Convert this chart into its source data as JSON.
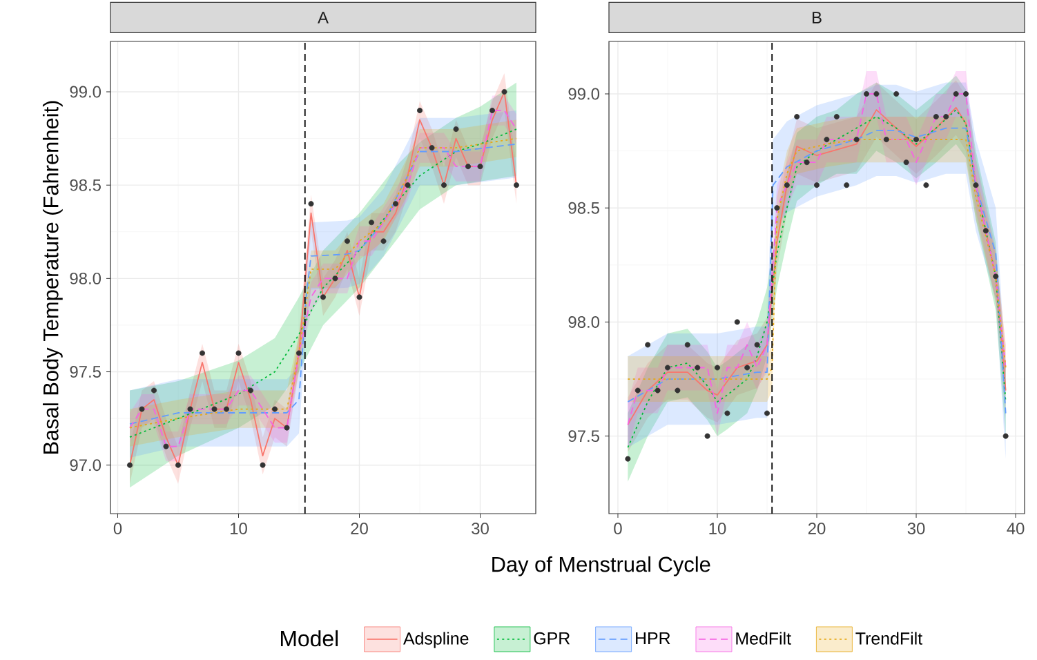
{
  "chart_data": [
    {
      "type": "line",
      "title": "A",
      "xlabel": "Day of Menstrual Cycle",
      "ylabel": "Basal Body Temperature (Fahrenheit)",
      "legend": "bottom",
      "legend_title": "Model",
      "grid": true,
      "xlim": [
        -0.6,
        34.6
      ],
      "ylim": [
        96.74,
        99.27
      ],
      "xticks": [
        0,
        10,
        20,
        30
      ],
      "yticks": [
        {
          "value": 97,
          "label": "97.0"
        },
        {
          "value": 97.5,
          "label": "97.5"
        },
        {
          "value": 98,
          "label": "98.0"
        },
        {
          "value": 98.5,
          "label": "98.5"
        },
        {
          "value": 99,
          "label": "99.0"
        }
      ],
      "ref_lines": [
        {
          "axis": "x",
          "value": 15.5,
          "line_style": "dashed",
          "color": "#000000"
        }
      ],
      "series": [
        {
          "name": "Adspline",
          "line_style": "solid",
          "color": "#F8766D",
          "x": [
            1,
            2,
            3,
            4,
            5,
            6,
            7,
            8,
            9,
            10,
            11,
            12,
            13,
            14,
            15,
            16,
            17,
            18,
            19,
            20,
            21,
            22,
            23,
            24,
            25,
            26,
            27,
            28,
            29,
            30,
            31,
            32,
            33
          ],
          "values": [
            97.0,
            97.3,
            97.35,
            97.15,
            97.0,
            97.3,
            97.55,
            97.3,
            97.3,
            97.55,
            97.35,
            97.05,
            97.25,
            97.2,
            97.6,
            98.35,
            97.9,
            98.0,
            98.15,
            97.9,
            98.25,
            98.25,
            98.35,
            98.55,
            98.85,
            98.7,
            98.5,
            98.75,
            98.6,
            98.6,
            98.85,
            99.0,
            98.5
          ],
          "lower": [
            96.9,
            97.2,
            97.25,
            97.05,
            96.9,
            97.2,
            97.45,
            97.2,
            97.2,
            97.45,
            97.25,
            96.95,
            97.15,
            97.1,
            97.5,
            98.25,
            97.8,
            97.9,
            98.05,
            97.8,
            98.15,
            98.15,
            98.25,
            98.45,
            98.75,
            98.6,
            98.4,
            98.65,
            98.5,
            98.5,
            98.75,
            98.9,
            98.4
          ],
          "upper": [
            97.1,
            97.4,
            97.45,
            97.25,
            97.1,
            97.4,
            97.65,
            97.4,
            97.4,
            97.65,
            97.45,
            97.15,
            97.35,
            97.3,
            97.7,
            98.45,
            98.0,
            98.1,
            98.25,
            98.0,
            98.35,
            98.35,
            98.45,
            98.65,
            98.95,
            98.8,
            98.6,
            98.85,
            98.7,
            98.7,
            98.95,
            99.1,
            98.6
          ]
        },
        {
          "name": "GPR",
          "line_style": "dotted",
          "color": "#00BA38",
          "x": [
            1,
            5,
            10,
            13,
            15,
            17,
            20,
            23,
            25,
            28,
            30,
            33
          ],
          "values": [
            97.15,
            97.25,
            97.38,
            97.5,
            97.7,
            97.95,
            98.15,
            98.4,
            98.55,
            98.68,
            98.72,
            98.8
          ],
          "lower": [
            96.88,
            97.05,
            97.2,
            97.32,
            97.5,
            97.75,
            97.95,
            98.2,
            98.37,
            98.5,
            98.52,
            98.55
          ],
          "upper": [
            97.4,
            97.45,
            97.56,
            97.68,
            97.9,
            98.15,
            98.35,
            98.6,
            98.73,
            98.86,
            98.92,
            99.05
          ]
        },
        {
          "name": "HPR",
          "line_style": "dashed",
          "color": "#619CFF",
          "x": [
            1,
            5,
            10,
            14,
            15,
            15.6,
            16,
            19,
            20,
            22,
            24,
            25,
            28,
            33
          ],
          "values": [
            97.22,
            97.28,
            97.28,
            97.28,
            97.35,
            97.9,
            98.12,
            98.13,
            98.15,
            98.3,
            98.55,
            98.68,
            98.68,
            98.72
          ],
          "lower": [
            97.04,
            97.1,
            97.1,
            97.1,
            97.17,
            97.72,
            97.94,
            97.95,
            97.97,
            98.12,
            98.37,
            98.5,
            98.5,
            98.54
          ],
          "upper": [
            97.4,
            97.46,
            97.46,
            97.46,
            97.53,
            98.08,
            98.3,
            98.31,
            98.33,
            98.48,
            98.73,
            98.86,
            98.86,
            98.9
          ]
        },
        {
          "name": "MedFilt",
          "line_style": "dashed",
          "color": "#F564E3",
          "x": [
            1,
            2,
            3,
            4,
            5,
            6,
            7,
            8,
            9,
            10,
            11,
            12,
            13,
            14,
            15,
            16,
            17,
            18,
            19,
            20,
            21,
            22,
            23,
            24,
            25,
            26,
            27,
            28,
            29,
            30,
            31,
            32,
            33
          ],
          "values": [
            97.2,
            97.3,
            97.3,
            97.1,
            97.1,
            97.3,
            97.3,
            97.3,
            97.3,
            97.4,
            97.4,
            97.3,
            97.2,
            97.2,
            97.6,
            97.9,
            98.0,
            98.0,
            98.0,
            98.2,
            98.2,
            98.3,
            98.4,
            98.5,
            98.7,
            98.7,
            98.7,
            98.6,
            98.6,
            98.6,
            98.9,
            98.9,
            98.8
          ],
          "lower": [
            97.12,
            97.22,
            97.22,
            97.02,
            97.02,
            97.22,
            97.22,
            97.22,
            97.22,
            97.32,
            97.32,
            97.22,
            97.12,
            97.12,
            97.52,
            97.82,
            97.92,
            97.92,
            97.92,
            98.12,
            98.12,
            98.22,
            98.32,
            98.42,
            98.62,
            98.62,
            98.62,
            98.52,
            98.52,
            98.52,
            98.82,
            98.82,
            98.72
          ],
          "upper": [
            97.28,
            97.38,
            97.38,
            97.18,
            97.18,
            97.38,
            97.38,
            97.38,
            97.38,
            97.48,
            97.48,
            97.38,
            97.28,
            97.28,
            97.68,
            97.98,
            98.08,
            98.08,
            98.08,
            98.28,
            98.28,
            98.38,
            98.48,
            98.58,
            98.78,
            98.78,
            98.78,
            98.68,
            98.68,
            98.68,
            98.98,
            98.98,
            98.88
          ]
        },
        {
          "name": "TrendFilt",
          "line_style": "dotted",
          "color": "#E6A817",
          "x": [
            1,
            5,
            10,
            14,
            15,
            16,
            18,
            20,
            22,
            24,
            25,
            28,
            33
          ],
          "values": [
            97.2,
            97.25,
            97.3,
            97.3,
            97.6,
            98.05,
            98.05,
            98.2,
            98.3,
            98.55,
            98.7,
            98.7,
            98.75
          ],
          "lower": [
            97.1,
            97.15,
            97.2,
            97.2,
            97.5,
            97.95,
            97.95,
            98.1,
            98.2,
            98.45,
            98.6,
            98.6,
            98.65
          ],
          "upper": [
            97.3,
            97.35,
            97.4,
            97.4,
            97.7,
            98.15,
            98.15,
            98.3,
            98.4,
            98.65,
            98.8,
            98.8,
            98.85
          ]
        },
        {
          "type": "scatter",
          "color": "#333333",
          "x": [
            1,
            2,
            3,
            4,
            5,
            6,
            7,
            8,
            9,
            10,
            11,
            12,
            13,
            14,
            15,
            16,
            17,
            18,
            19,
            20,
            21,
            22,
            23,
            24,
            25,
            26,
            27,
            28,
            29,
            30,
            31,
            32,
            33
          ],
          "values": [
            97.0,
            97.3,
            97.4,
            97.1,
            97.0,
            97.3,
            97.6,
            97.3,
            97.3,
            97.6,
            97.4,
            97.0,
            97.3,
            97.2,
            97.6,
            98.4,
            97.9,
            98.0,
            98.2,
            97.9,
            98.3,
            98.2,
            98.4,
            98.5,
            98.9,
            98.7,
            98.5,
            98.8,
            98.6,
            98.6,
            98.9,
            99.0,
            98.5
          ]
        }
      ]
    },
    {
      "type": "line",
      "title": "B",
      "grid": true,
      "xlim": [
        -0.9,
        40.9
      ],
      "ylim": [
        97.16,
        99.23
      ],
      "xticks": [
        0,
        10,
        20,
        30,
        40
      ],
      "yticks": [
        {
          "value": 97.5,
          "label": "97.5"
        },
        {
          "value": 98,
          "label": "98.0"
        },
        {
          "value": 98.5,
          "label": "98.5"
        },
        {
          "value": 99,
          "label": "99.0"
        }
      ],
      "ref_lines": [
        {
          "axis": "x",
          "value": 15.5,
          "line_style": "dashed",
          "color": "#000000"
        }
      ],
      "series": [
        {
          "line_style": "solid",
          "color": "#F8766D",
          "x": [
            1,
            3,
            5,
            7,
            9,
            10,
            12,
            14,
            15,
            16,
            17,
            18,
            20,
            24,
            26,
            28,
            30,
            32,
            34,
            35,
            36,
            38,
            39
          ],
          "values": [
            97.55,
            97.7,
            97.78,
            97.78,
            97.7,
            97.68,
            97.8,
            97.83,
            97.9,
            98.35,
            98.6,
            98.77,
            98.73,
            98.78,
            98.93,
            98.85,
            98.77,
            98.85,
            98.94,
            98.87,
            98.6,
            98.2,
            97.7
          ],
          "lower": [
            97.43,
            97.58,
            97.66,
            97.66,
            97.58,
            97.56,
            97.68,
            97.71,
            97.78,
            98.23,
            98.48,
            98.65,
            98.61,
            98.66,
            98.81,
            98.73,
            98.65,
            98.73,
            98.82,
            98.75,
            98.48,
            98.08,
            97.58
          ],
          "upper": [
            97.67,
            97.82,
            97.9,
            97.9,
            97.82,
            97.8,
            97.92,
            97.95,
            98.02,
            98.47,
            98.72,
            98.89,
            98.85,
            98.9,
            99.05,
            98.97,
            98.89,
            98.97,
            99.06,
            98.99,
            98.72,
            98.32,
            97.82
          ]
        },
        {
          "line_style": "dotted",
          "color": "#00BA38",
          "x": [
            1,
            3,
            5,
            7,
            9,
            10,
            11,
            13,
            14,
            15,
            16,
            17,
            18,
            20,
            22,
            24,
            26,
            28,
            30,
            32,
            34,
            35,
            36,
            38,
            39
          ],
          "values": [
            97.45,
            97.65,
            97.8,
            97.82,
            97.72,
            97.65,
            97.68,
            97.75,
            97.85,
            98.0,
            98.3,
            98.5,
            98.68,
            98.75,
            98.8,
            98.85,
            98.9,
            98.85,
            98.78,
            98.85,
            98.93,
            98.87,
            98.6,
            98.2,
            97.65
          ],
          "lower": [
            97.3,
            97.5,
            97.65,
            97.67,
            97.57,
            97.5,
            97.53,
            97.6,
            97.7,
            97.85,
            98.15,
            98.35,
            98.53,
            98.6,
            98.65,
            98.65,
            98.75,
            98.7,
            98.63,
            98.7,
            98.78,
            98.72,
            98.45,
            98.05,
            97.5
          ],
          "upper": [
            97.6,
            97.8,
            97.95,
            97.97,
            97.87,
            97.8,
            97.83,
            97.9,
            98.0,
            98.15,
            98.45,
            98.65,
            98.83,
            98.9,
            98.93,
            99.0,
            99.05,
            99.0,
            98.93,
            99.0,
            99.08,
            99.02,
            98.75,
            98.35,
            97.8
          ]
        },
        {
          "line_style": "dashed",
          "color": "#619CFF",
          "x": [
            1,
            5,
            10,
            14,
            15,
            15.6,
            17,
            20,
            24,
            26,
            28,
            30,
            33,
            35,
            36,
            38,
            39
          ],
          "values": [
            97.65,
            97.75,
            97.75,
            97.78,
            97.78,
            98.6,
            98.68,
            98.75,
            98.8,
            98.84,
            98.84,
            98.81,
            98.85,
            98.85,
            98.6,
            98.3,
            97.6
          ],
          "lower": [
            97.45,
            97.55,
            97.55,
            97.58,
            97.58,
            98.4,
            98.48,
            98.55,
            98.6,
            98.64,
            98.64,
            98.61,
            98.65,
            98.65,
            98.4,
            98.1,
            97.4
          ],
          "upper": [
            97.85,
            97.95,
            97.95,
            97.98,
            97.98,
            98.8,
            98.88,
            98.95,
            99.0,
            99.04,
            99.04,
            99.01,
            99.05,
            99.05,
            98.8,
            98.5,
            97.8
          ]
        },
        {
          "line_style": "dashed",
          "color": "#F564E3",
          "x": [
            1,
            2,
            3,
            4,
            5,
            6,
            7,
            8,
            9,
            10,
            11,
            12,
            13,
            14,
            15,
            16,
            17,
            18,
            19,
            20,
            21,
            22,
            23,
            24,
            25,
            26,
            27,
            28,
            29,
            30,
            31,
            32,
            33,
            34,
            35,
            36,
            37,
            38,
            39
          ],
          "values": [
            97.55,
            97.7,
            97.7,
            97.7,
            97.8,
            97.8,
            97.8,
            97.8,
            97.8,
            97.6,
            97.8,
            97.8,
            97.9,
            97.8,
            97.9,
            98.5,
            98.6,
            98.7,
            98.7,
            98.7,
            98.8,
            98.8,
            98.8,
            98.8,
            99.0,
            99.0,
            98.8,
            98.8,
            98.8,
            98.7,
            98.8,
            98.9,
            98.9,
            99.0,
            99.0,
            98.6,
            98.4,
            98.2,
            97.8
          ],
          "lower": [
            97.45,
            97.6,
            97.6,
            97.6,
            97.7,
            97.7,
            97.7,
            97.7,
            97.7,
            97.5,
            97.7,
            97.7,
            97.8,
            97.7,
            97.8,
            98.4,
            98.5,
            98.6,
            98.6,
            98.6,
            98.7,
            98.7,
            98.7,
            98.7,
            98.9,
            98.9,
            98.7,
            98.7,
            98.7,
            98.6,
            98.7,
            98.8,
            98.8,
            98.9,
            98.9,
            98.5,
            98.3,
            98.1,
            97.7
          ],
          "upper": [
            97.65,
            97.8,
            97.8,
            97.8,
            97.9,
            97.9,
            97.9,
            97.9,
            97.9,
            97.7,
            97.9,
            97.9,
            98.0,
            97.9,
            98.0,
            98.6,
            98.7,
            98.8,
            98.8,
            98.8,
            98.9,
            98.9,
            98.9,
            98.9,
            99.1,
            99.1,
            98.9,
            98.9,
            98.9,
            98.8,
            98.9,
            99.0,
            99.0,
            99.1,
            99.1,
            98.7,
            98.5,
            98.3,
            97.9
          ]
        },
        {
          "line_style": "dotted",
          "color": "#E6A817",
          "x": [
            1,
            15,
            15.5,
            16,
            17,
            18,
            21,
            24,
            35,
            36,
            38,
            39
          ],
          "values": [
            97.75,
            97.75,
            97.8,
            98.45,
            98.65,
            98.75,
            98.78,
            98.8,
            98.8,
            98.55,
            98.2,
            97.8
          ],
          "lower": [
            97.65,
            97.65,
            97.7,
            98.35,
            98.55,
            98.65,
            98.68,
            98.7,
            98.7,
            98.45,
            98.1,
            97.7
          ],
          "upper": [
            97.85,
            97.85,
            97.9,
            98.55,
            98.75,
            98.85,
            98.88,
            98.9,
            98.9,
            98.65,
            98.3,
            97.9
          ]
        },
        {
          "type": "scatter",
          "color": "#333333",
          "x": [
            1,
            2,
            3,
            4,
            5,
            6,
            7,
            8,
            9,
            10,
            11,
            12,
            13,
            14,
            15,
            16,
            17,
            18,
            19,
            20,
            21,
            22,
            23,
            24,
            25,
            26,
            27,
            28,
            29,
            30,
            31,
            32,
            33,
            34,
            35,
            36,
            37,
            38,
            39
          ],
          "values": [
            97.4,
            97.7,
            97.9,
            97.7,
            97.8,
            97.7,
            97.9,
            97.8,
            97.5,
            97.8,
            97.6,
            98.0,
            97.8,
            97.9,
            97.6,
            98.5,
            98.6,
            98.9,
            98.7,
            98.6,
            98.8,
            98.9,
            98.6,
            98.8,
            99.0,
            99.0,
            98.8,
            99.0,
            98.7,
            98.8,
            98.6,
            98.9,
            98.9,
            99.0,
            99.0,
            98.6,
            98.4,
            98.2,
            97.5
          ]
        }
      ]
    }
  ]
}
